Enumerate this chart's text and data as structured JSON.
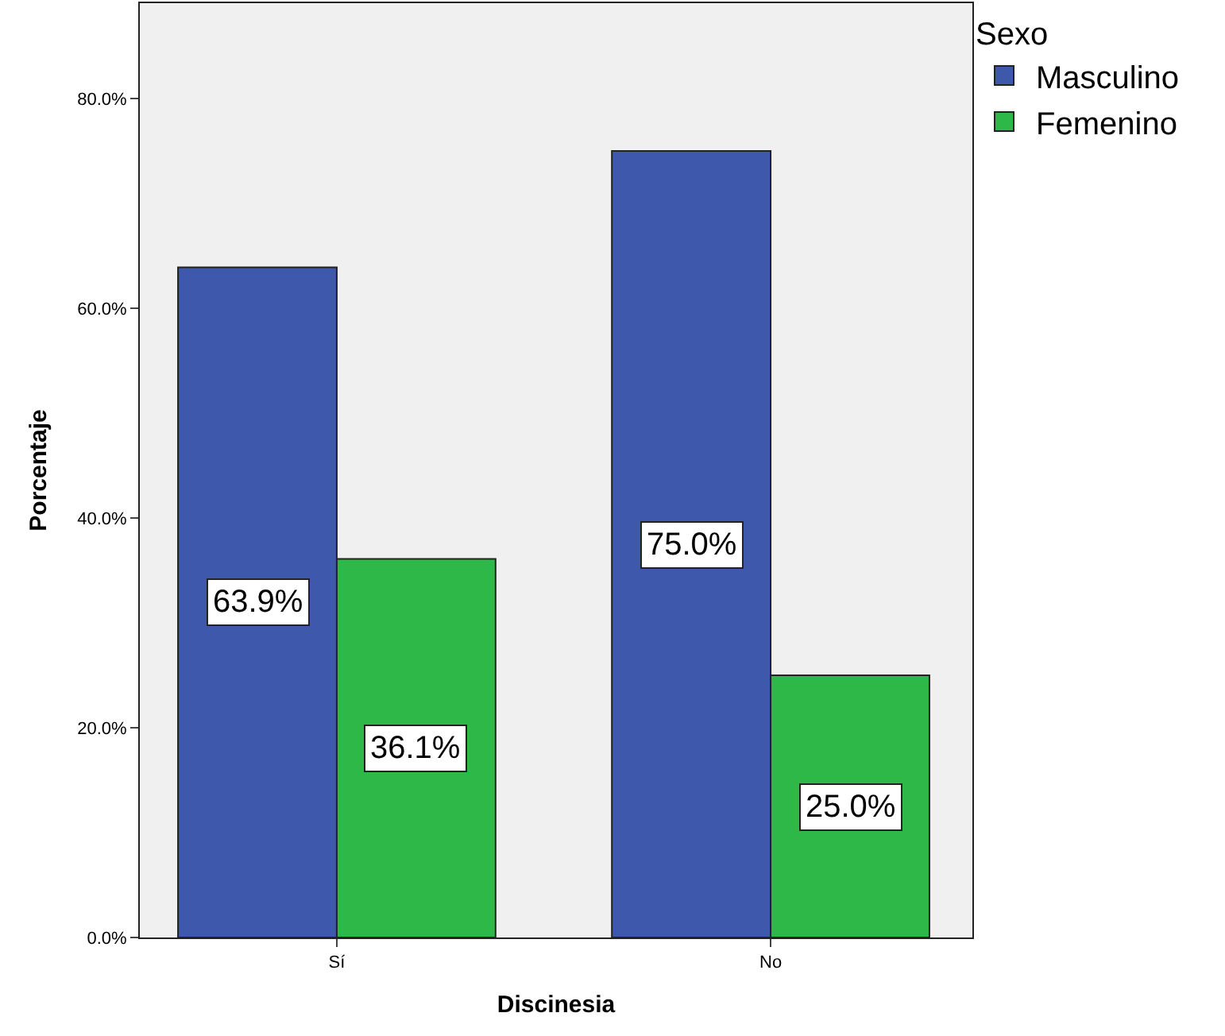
{
  "chart_data": {
    "type": "bar",
    "xlabel": "Discinesia",
    "ylabel": "Porcentaje",
    "legend_title": "Sexo",
    "categories": [
      "Sí",
      "No"
    ],
    "series": [
      {
        "name": "Masculino",
        "color": "#3e58ac",
        "values": [
          63.9,
          75.0
        ],
        "value_labels": [
          "63.9%",
          "75.0%"
        ]
      },
      {
        "name": "Femenino",
        "color": "#2eb848",
        "values": [
          36.1,
          25.0
        ],
        "value_labels": [
          "36.1%",
          "25.0%"
        ]
      }
    ],
    "ylim": [
      0,
      89.1
    ],
    "yticks": [
      {
        "value": 0,
        "label": "0.0%"
      },
      {
        "value": 20,
        "label": "20.0%"
      },
      {
        "value": 40,
        "label": "40.0%"
      },
      {
        "value": 60,
        "label": "60.0%"
      },
      {
        "value": 80,
        "label": "80.0%"
      }
    ],
    "legend": "top right",
    "grid": false
  }
}
